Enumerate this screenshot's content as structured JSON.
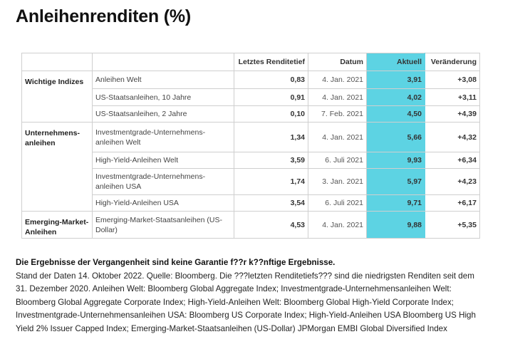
{
  "title": "Anleihenrenditen (%)",
  "table": {
    "headers": [
      "",
      "",
      "Letztes Renditetief",
      "Datum",
      "Aktuell",
      "Veränderung"
    ],
    "accent_color": "#5dd3e3",
    "groups": [
      {
        "category": "Wichtige Indizes",
        "rows": [
          {
            "name": "Anleihen Welt",
            "low": "0,83",
            "date": "4. Jan. 2021",
            "current": "3,91",
            "change": "+3,08"
          },
          {
            "name": "US-Staatsanleihen, 10 Jahre",
            "low": "0,91",
            "date": "4. Jan. 2021",
            "current": "4,02",
            "change": "+3,11"
          },
          {
            "name": "US-Staatsanleihen, 2 Jahre",
            "low": "0,10",
            "date": "7. Feb. 2021",
            "current": "4,50",
            "change": "+4,39"
          }
        ]
      },
      {
        "category": "Unternehmens-anleihen",
        "rows": [
          {
            "name": "Investmentgrade-Unternehmens-anleihen Welt",
            "low": "1,34",
            "date": "4. Jan. 2021",
            "current": "5,66",
            "change": "+4,32"
          },
          {
            "name": "High-Yield-Anleihen Welt",
            "low": "3,59",
            "date": "6. Juli 2021",
            "current": "9,93",
            "change": "+6,34"
          },
          {
            "name": "Investmentgrade-Unternehmens-anleihen USA",
            "low": "1,74",
            "date": "3. Jan. 2021",
            "current": "5,97",
            "change": "+4,23"
          },
          {
            "name": "High-Yield-Anleihen USA",
            "low": "3,54",
            "date": "6. Juli 2021",
            "current": "9,71",
            "change": "+6,17"
          }
        ]
      },
      {
        "category": "Emerging-Market-Anleihen",
        "rows": [
          {
            "name": "Emerging-Market-Staatsanleihen (US-Dollar)",
            "low": "4,53",
            "date": "4. Jan. 2021",
            "current": "9,88",
            "change": "+5,35"
          }
        ]
      }
    ]
  },
  "footnote": {
    "heading": "Die Ergebnisse der Vergangenheit sind keine Garantie f??r k??nftige Ergebnisse.",
    "text": "Stand der Daten 14. Oktober 2022. Quelle: Bloomberg. Die ???letzten Renditetiefs??? sind die niedrigsten Renditen seit dem 31. Dezember 2020. Anleihen Welt: Bloomberg Global Aggregate Index; Investmentgrade-Unternehmensanleihen Welt: Bloomberg Global Aggregate Corporate Index; High-Yield-Anleihen Welt: Bloomberg Global High-Yield Corporate Index; Investmentgrade-Unternehmensanleihen USA: Bloomberg US Corporate Index; High-Yield-Anleihen USA Bloomberg US High Yield 2% Issuer Capped Index; Emerging-Market-Staatsanleihen (US-Dollar) JPMorgan EMBI Global Diversified Index"
  }
}
